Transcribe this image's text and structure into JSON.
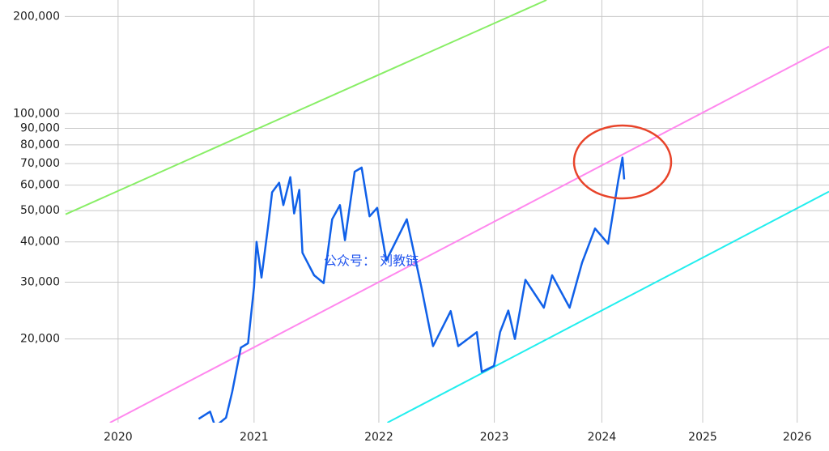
{
  "chart_data": {
    "type": "line",
    "xscale": "log",
    "yscale": "log",
    "grid": true,
    "xlim": [
      3880,
      6335
    ],
    "ylim": [
      11000,
      225000
    ],
    "xticks": [
      {
        "value": 4015,
        "label": "2020"
      },
      {
        "value": 4381,
        "label": "2021"
      },
      {
        "value": 4746,
        "label": "2022"
      },
      {
        "value": 5111,
        "label": "2023"
      },
      {
        "value": 5476,
        "label": "2024"
      },
      {
        "value": 5842,
        "label": "2025"
      },
      {
        "value": 6207,
        "label": "2026"
      }
    ],
    "yticks": [
      {
        "value": 20000,
        "label": "20,000"
      },
      {
        "value": 30000,
        "label": "30,000"
      },
      {
        "value": 40000,
        "label": "40,000"
      },
      {
        "value": 50000,
        "label": "50,000"
      },
      {
        "value": 60000,
        "label": "60,000"
      },
      {
        "value": 70000,
        "label": "70,000"
      },
      {
        "value": 80000,
        "label": "80,000"
      },
      {
        "value": 90000,
        "label": "90,000"
      },
      {
        "value": 100000,
        "label": "100,000"
      },
      {
        "value": 200000,
        "label": "200,000"
      }
    ],
    "series": [
      {
        "color": "#88ee66",
        "x": [
          3882,
          5285
        ],
        "values": [
          48700,
          225000
        ]
      },
      {
        "color": "#ff88ee",
        "x": [
          3994,
          6335
        ],
        "values": [
          11000,
          161400
        ]
      },
      {
        "color": "#22eeee",
        "x": [
          4772,
          6335
        ],
        "values": [
          11000,
          57300
        ]
      },
      {
        "color": "#1060e8",
        "x": [
          4228,
          4259,
          4273,
          4303,
          4320,
          4344,
          4364,
          4381,
          4388,
          4402,
          4421,
          4432,
          4452,
          4464,
          4484,
          4495,
          4510,
          4519,
          4553,
          4581,
          4606,
          4629,
          4644,
          4673,
          4694,
          4718,
          4741,
          4769,
          4832,
          4877,
          4914,
          4970,
          4994,
          5054,
          5070,
          5110,
          5130,
          5157,
          5179,
          5214,
          5276,
          5304,
          5364,
          5407,
          5452,
          5498,
          5534,
          5549,
          5555
        ],
        "values": [
          11300,
          11900,
          10700,
          11400,
          13700,
          18800,
          19400,
          29000,
          40000,
          31000,
          45000,
          57000,
          61000,
          52000,
          63500,
          49000,
          58000,
          37000,
          31500,
          29800,
          47000,
          52000,
          40500,
          66000,
          68000,
          48000,
          51000,
          35000,
          47000,
          29000,
          19000,
          24400,
          19000,
          21000,
          15800,
          16500,
          21000,
          24500,
          20000,
          30500,
          25000,
          31500,
          25000,
          34500,
          44000,
          39500,
          62000,
          73000,
          62500
        ]
      }
    ],
    "watermark": "公众号： 刘教链"
  }
}
